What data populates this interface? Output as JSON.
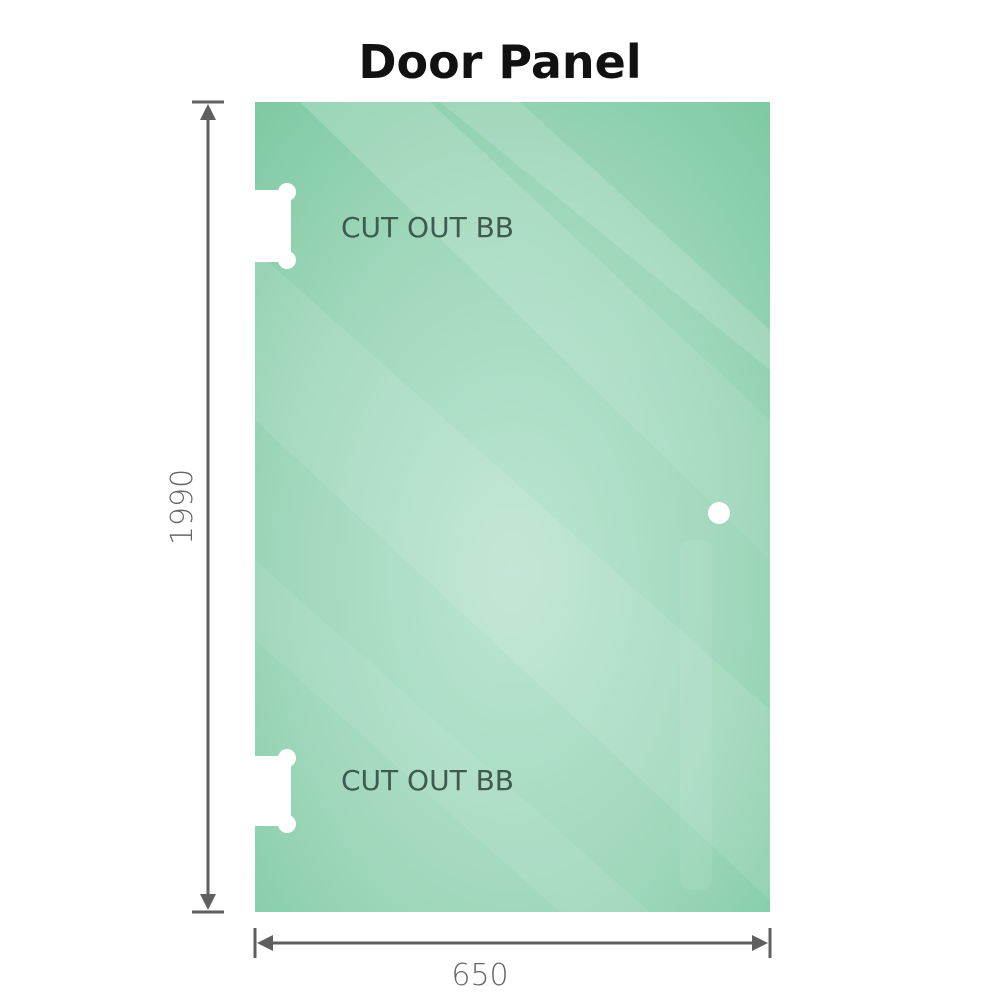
{
  "title": "Door Panel",
  "cutouts": [
    {
      "label": "CUT OUT BB"
    },
    {
      "label": "CUT OUT BB"
    }
  ],
  "dimensions": {
    "height": "1990",
    "width": "650"
  },
  "colors": {
    "glass_edge": "#7fcaa3",
    "glass_center": "#bde5d2",
    "dimension_line": "#5f5f5f",
    "label_text": "#3f5a4e"
  }
}
